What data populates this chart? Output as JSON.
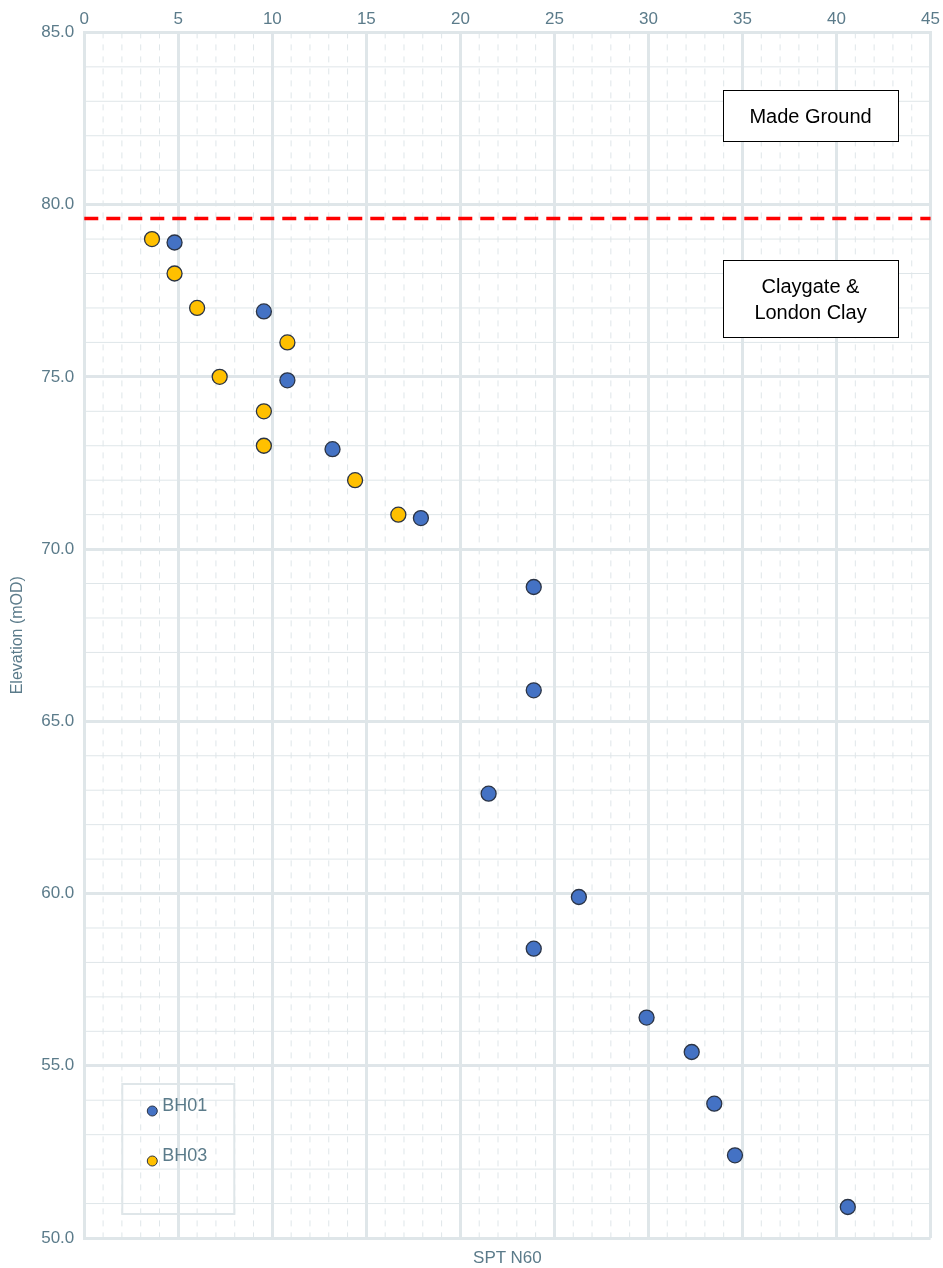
{
  "chart_data": {
    "type": "scatter",
    "xlabel": "SPT N60",
    "ylabel": "Elevation (mOD)",
    "xlim": [
      0,
      45
    ],
    "xticks": [
      0,
      5,
      10,
      15,
      20,
      25,
      30,
      35,
      40,
      45
    ],
    "ylim": [
      50,
      85
    ],
    "yticks": [
      {
        "value": 50,
        "label": "50.0"
      },
      {
        "value": 55,
        "label": "55.0"
      },
      {
        "value": 60,
        "label": "60.0"
      },
      {
        "value": 65,
        "label": "65.0"
      },
      {
        "value": 70,
        "label": "70.0"
      },
      {
        "value": 75,
        "label": "75.0"
      },
      {
        "value": 80,
        "label": "80.0"
      },
      {
        "value": 85,
        "label": "85.0"
      }
    ],
    "grid": true,
    "legend": "bottom left",
    "marker": "circle",
    "series": [
      {
        "name": "BH01",
        "color": "#4472c4",
        "x": [
          4.8,
          9.55,
          10.8,
          13.2,
          17.9,
          23.9,
          23.9,
          21.5,
          26.3,
          23.9,
          29.9,
          32.3,
          33.5,
          34.6,
          40.6
        ],
        "values": [
          78.9,
          76.9,
          74.9,
          72.9,
          70.9,
          68.9,
          65.9,
          62.9,
          59.9,
          58.4,
          56.4,
          55.4,
          53.9,
          52.4,
          50.9
        ]
      },
      {
        "name": "BH03",
        "color": "#ffc000",
        "x": [
          3.6,
          4.8,
          6.0,
          7.2,
          9.55,
          9.55,
          10.8,
          14.4,
          16.7
        ],
        "values": [
          79.0,
          78.0,
          77.0,
          75.0,
          74.0,
          73.0,
          76.0,
          72.0,
          71.0
        ]
      }
    ],
    "ref_lines": [
      {
        "axis": "y",
        "value": 79.6,
        "color": "#ff0000",
        "line_style": "dashed"
      }
    ],
    "annotations": [
      "Made Ground",
      "Claygate & London Clay"
    ]
  }
}
